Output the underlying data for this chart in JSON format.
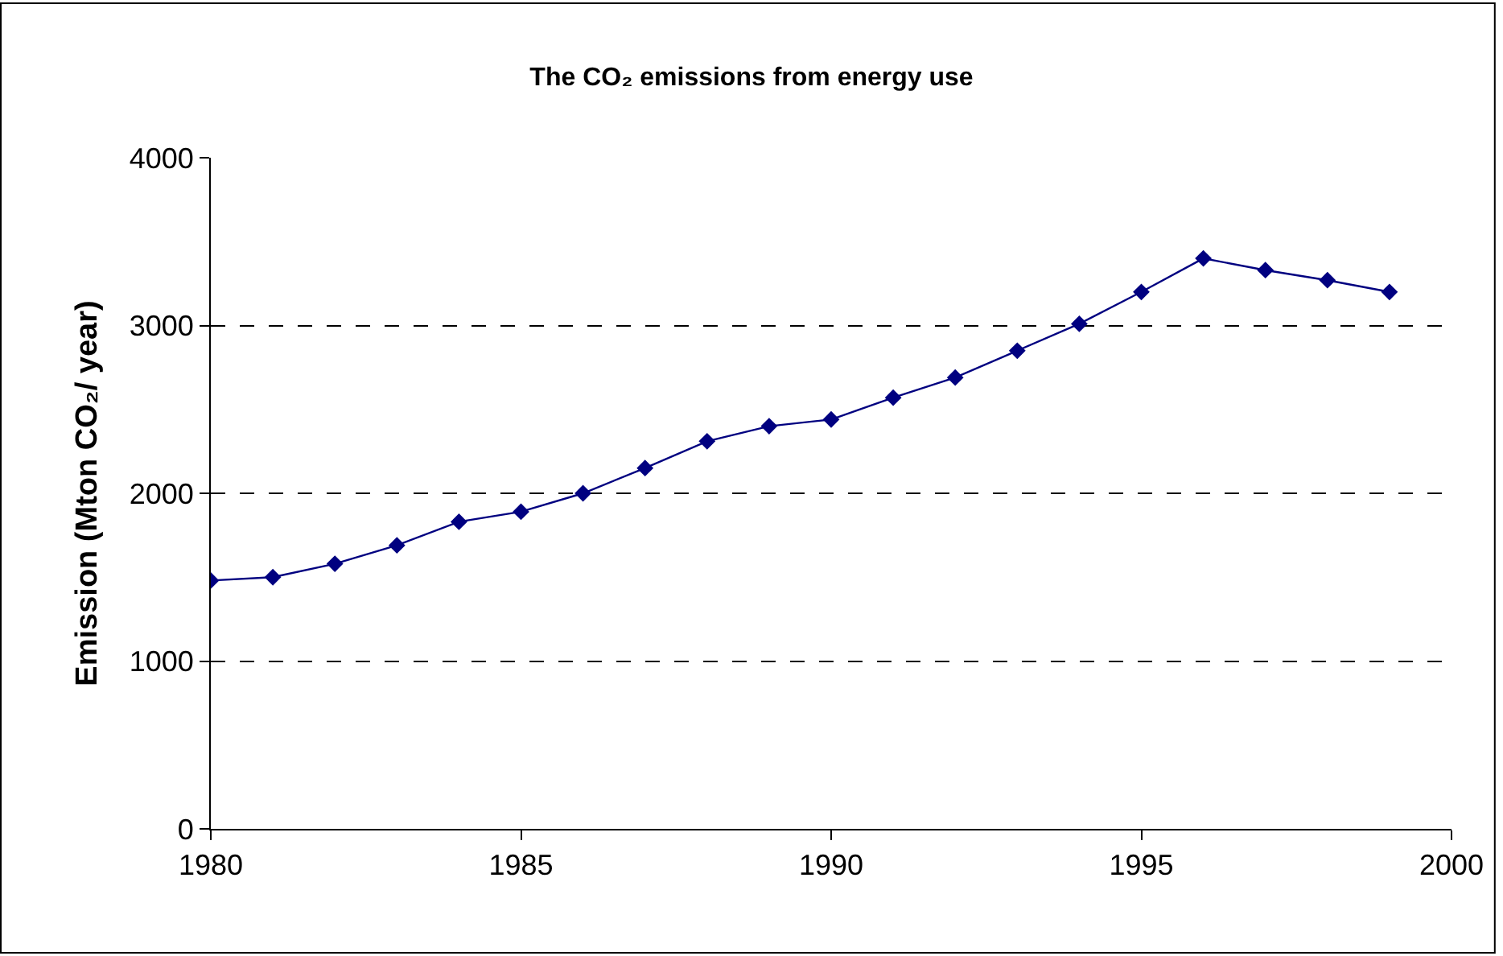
{
  "chart_data": {
    "type": "line",
    "title": "The CO₂ emissions from energy use",
    "ylabel": "Emission (Mton CO₂/ year)",
    "x": [
      1980,
      1981,
      1982,
      1983,
      1984,
      1985,
      1986,
      1987,
      1988,
      1989,
      1990,
      1991,
      1992,
      1993,
      1994,
      1995,
      1996,
      1997,
      1998,
      1999
    ],
    "series": [
      {
        "color": "#000080",
        "values": [
          1480,
          1500,
          1580,
          1690,
          1830,
          1890,
          2000,
          2150,
          2310,
          2400,
          2440,
          2570,
          2690,
          2850,
          3010,
          3200,
          3400,
          3330,
          3270,
          3200
        ]
      }
    ],
    "xlim": [
      1980,
      2000
    ],
    "xticks": [
      1980,
      1985,
      1990,
      1995,
      2000
    ],
    "ylim": [
      0,
      4000
    ],
    "yticks": [
      0,
      1000,
      2000,
      3000,
      4000
    ],
    "grid": "y",
    "marker": "diamond",
    "line_style": "solid"
  }
}
